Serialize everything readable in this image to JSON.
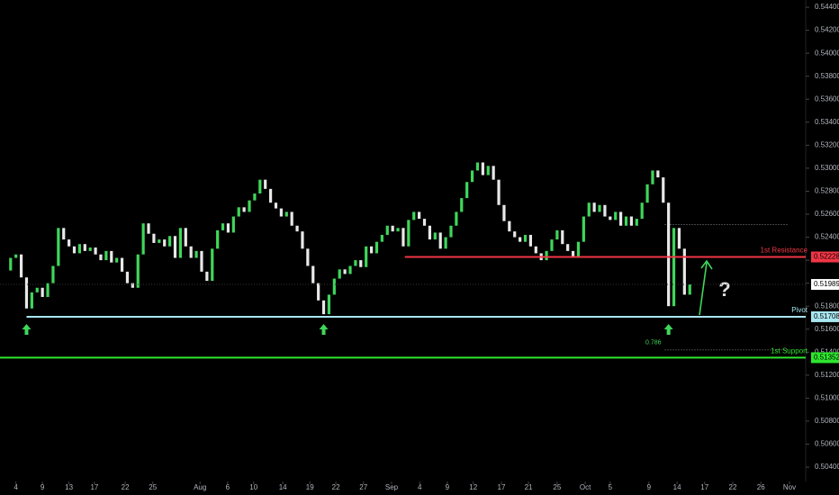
{
  "chart_data": {
    "type": "candlestick",
    "closes": [
      0.5211,
      0.5222,
      0.5225,
      0.5205,
      0.5178,
      0.5192,
      0.5196,
      0.5188,
      0.52,
      0.5215,
      0.5248,
      0.5238,
      0.5232,
      0.5226,
      0.5234,
      0.5228,
      0.5231,
      0.5225,
      0.522,
      0.5228,
      0.5218,
      0.5222,
      0.521,
      0.52,
      0.5196,
      0.5225,
      0.5252,
      0.5243,
      0.5235,
      0.5238,
      0.5232,
      0.5241,
      0.5222,
      0.5248,
      0.5232,
      0.5222,
      0.5228,
      0.521,
      0.5202,
      0.523,
      0.5246,
      0.5252,
      0.5244,
      0.5258,
      0.5266,
      0.5262,
      0.5272,
      0.5278,
      0.529,
      0.5282,
      0.527,
      0.5265,
      0.5258,
      0.5262,
      0.525,
      0.5245,
      0.523,
      0.5215,
      0.52,
      0.5185,
      0.5173,
      0.519,
      0.5204,
      0.5212,
      0.5208,
      0.5215,
      0.522,
      0.5214,
      0.5232,
      0.5226,
      0.5236,
      0.5242,
      0.525,
      0.5245,
      0.5248,
      0.5232,
      0.5255,
      0.5262,
      0.5256,
      0.525,
      0.5238,
      0.5244,
      0.523,
      0.524,
      0.525,
      0.5262,
      0.5274,
      0.5288,
      0.5298,
      0.5305,
      0.5294,
      0.5302,
      0.529,
      0.5268,
      0.5254,
      0.5245,
      0.524,
      0.5236,
      0.5242,
      0.5232,
      0.5226,
      0.522,
      0.5228,
      0.5238,
      0.5246,
      0.5234,
      0.5228,
      0.5222,
      0.5236,
      0.5258,
      0.527,
      0.5262,
      0.5268,
      0.5258,
      0.5255,
      0.5262,
      0.525,
      0.5258,
      0.525,
      0.5256,
      0.527,
      0.5286,
      0.5298,
      0.5292,
      0.527,
      0.518,
      0.5248,
      0.523,
      0.519,
      0.51989
    ],
    "up_color": "#3fd65b",
    "down_color": "#e8e8e8",
    "last_price": {
      "value": 0.51989,
      "label": "0.51989"
    },
    "xlim": [
      -1,
      150
    ],
    "xticks": [
      {
        "value": 2,
        "label": "4"
      },
      {
        "value": 7,
        "label": "9"
      },
      {
        "value": 12,
        "label": "13"
      },
      {
        "value": 16.8,
        "label": "17"
      },
      {
        "value": 22.6,
        "label": "22"
      },
      {
        "value": 27.8,
        "label": "25"
      },
      {
        "value": 36.7,
        "label": "Aug"
      },
      {
        "value": 41.9,
        "label": "6"
      },
      {
        "value": 46.8,
        "label": "10"
      },
      {
        "value": 52.3,
        "label": "14"
      },
      {
        "value": 57.4,
        "label": "19"
      },
      {
        "value": 62.3,
        "label": "22"
      },
      {
        "value": 67.5,
        "label": "27"
      },
      {
        "value": 72.8,
        "label": "Sep"
      },
      {
        "value": 78.1,
        "label": "4"
      },
      {
        "value": 83.3,
        "label": "9"
      },
      {
        "value": 88.2,
        "label": "12"
      },
      {
        "value": 93.5,
        "label": "17"
      },
      {
        "value": 98.6,
        "label": "21"
      },
      {
        "value": 104,
        "label": "25"
      },
      {
        "value": 109.3,
        "label": "Oct"
      },
      {
        "value": 114,
        "label": "5"
      },
      {
        "value": 121.3,
        "label": "9"
      },
      {
        "value": 126.6,
        "label": "14"
      },
      {
        "value": 131.8,
        "label": "17"
      },
      {
        "value": 137.1,
        "label": "22"
      },
      {
        "value": 142.4,
        "label": "26"
      },
      {
        "value": 147.8,
        "label": "Nov"
      }
    ],
    "ylim": [
      0.50275,
      0.54463
    ],
    "yticks": [
      {
        "value": 0.544,
        "label": "0.54400"
      },
      {
        "value": 0.542,
        "label": "0.54200"
      },
      {
        "value": 0.54,
        "label": "0.54000"
      },
      {
        "value": 0.538,
        "label": "0.53800"
      },
      {
        "value": 0.536,
        "label": "0.53600"
      },
      {
        "value": 0.534,
        "label": "0.53400"
      },
      {
        "value": 0.532,
        "label": "0.53200"
      },
      {
        "value": 0.53,
        "label": "0.53000"
      },
      {
        "value": 0.528,
        "label": "0.52800"
      },
      {
        "value": 0.526,
        "label": "0.52600"
      },
      {
        "value": 0.524,
        "label": "0.52400"
      },
      {
        "value": 0.522,
        "label": "0.52200"
      },
      {
        "value": 0.52,
        "label": "0.52000"
      },
      {
        "value": 0.518,
        "label": "0.51800"
      },
      {
        "value": 0.516,
        "label": "0.51600"
      },
      {
        "value": 0.514,
        "label": "0.51400"
      },
      {
        "value": 0.512,
        "label": "0.51200"
      },
      {
        "value": 0.51,
        "label": "0.51000"
      },
      {
        "value": 0.508,
        "label": "0.50800"
      },
      {
        "value": 0.506,
        "label": "0.50600"
      },
      {
        "value": 0.504,
        "label": "0.50400"
      }
    ],
    "levels": [
      {
        "name": "1st Resistance",
        "value": 0.52228,
        "label": "0.52228",
        "color": "#f23645",
        "start": 75.3
      },
      {
        "name": "Pivot",
        "value": 0.51708,
        "label": "0.51708",
        "color": "#a8e6f0",
        "start": 4
      },
      {
        "name": "1st Support",
        "value": 0.51352,
        "label": "0.51352",
        "color": "#2ee62e",
        "start": -1
      }
    ],
    "fib_levels": [
      {
        "value": 0.5251,
        "start": 124.3
      },
      {
        "value": 0.5142,
        "start": 124.3,
        "label": "0.786"
      }
    ],
    "markers": [
      4,
      60,
      125
    ],
    "annotation": "?"
  }
}
